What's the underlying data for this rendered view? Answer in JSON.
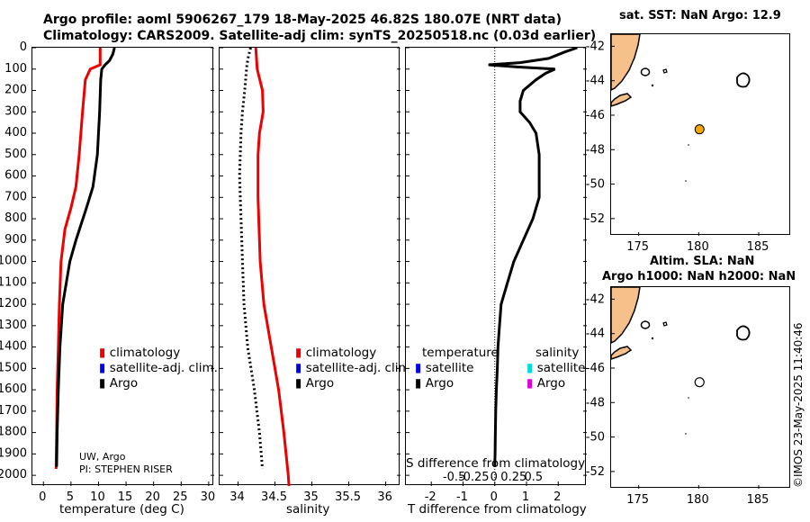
{
  "title": {
    "line1": "Argo profile: aoml 5906267_179 18-May-2025 46.82S 180.07E (NRT data)",
    "line2": "Climatology: CARS2009. Satellite-adj clim: synTS_20250518.nc (0.03d earlier)"
  },
  "colors": {
    "climatology": "#ee0000",
    "satellite": "#0000ee",
    "argo": "#000000",
    "sat_salinity": "#00dddd",
    "argo_salinity": "#dd00dd",
    "land": "#f5c08a",
    "float": "#f5a800"
  },
  "chart_data": [
    {
      "type": "line",
      "name": "temperature",
      "xlabel": "temperature (deg C)",
      "xlim": [
        -2,
        31
      ],
      "xticks": [
        "0",
        "5",
        "10",
        "15",
        "20",
        "25",
        "30"
      ],
      "ylim": [
        0,
        2050
      ],
      "yticks": [
        "0",
        "100",
        "200",
        "300",
        "400",
        "500",
        "600",
        "700",
        "800",
        "900",
        "1000",
        "1100",
        "1200",
        "1300",
        "1400",
        "1500",
        "1600",
        "1700",
        "1800",
        "1900",
        "2000"
      ],
      "legend": [
        "climatology",
        "satellite-adj. clim.",
        "Argo"
      ],
      "annotation": [
        "UW, Argo",
        "PI: STEPHEN RISER"
      ],
      "series": [
        {
          "name": "climatology",
          "depth": [
            0,
            80,
            100,
            150,
            300,
            500,
            650,
            750,
            850,
            1000,
            1200,
            1400,
            1600,
            1800,
            1970
          ],
          "values": [
            10.3,
            10.3,
            8.5,
            7.6,
            7.1,
            6.5,
            5.9,
            5.0,
            3.9,
            3.2,
            2.9,
            2.7,
            2.5,
            2.4,
            2.3
          ]
        },
        {
          "name": "Argo",
          "depth": [
            0,
            30,
            60,
            80,
            100,
            150,
            300,
            500,
            650,
            750,
            900,
            1000,
            1200,
            1400,
            1600,
            1800,
            1960
          ],
          "values": [
            12.9,
            12.6,
            12.0,
            11.2,
            10.6,
            10.4,
            10.2,
            9.8,
            9.0,
            7.8,
            5.9,
            4.8,
            3.5,
            3.0,
            2.7,
            2.5,
            2.4
          ]
        }
      ]
    },
    {
      "type": "line",
      "name": "salinity",
      "xlabel": "salinity",
      "xlim": [
        33.75,
        36.2
      ],
      "xticks": [
        "34",
        "34.5",
        "35",
        "35.5",
        "36"
      ],
      "ylim": [
        0,
        2050
      ],
      "legend": [
        "climatology",
        "satellite-adj. clim.",
        "Argo"
      ],
      "series": [
        {
          "name": "climatology",
          "depth": [
            0,
            50,
            100,
            200,
            300,
            400,
            500,
            700,
            1000,
            1200,
            1400,
            1600,
            1800,
            2000,
            2050
          ],
          "values": [
            34.24,
            34.25,
            34.26,
            34.33,
            34.34,
            34.29,
            34.27,
            34.27,
            34.3,
            34.35,
            34.45,
            34.55,
            34.62,
            34.68,
            34.69
          ]
        },
        {
          "name": "Argo",
          "depth": [
            0,
            40,
            80,
            120,
            200,
            300,
            400,
            600,
            800,
            1000,
            1200,
            1400,
            1600,
            1800,
            1970
          ],
          "values": [
            34.17,
            34.14,
            34.12,
            34.11,
            34.09,
            34.06,
            34.04,
            34.02,
            34.04,
            34.06,
            34.08,
            34.13,
            34.22,
            34.29,
            34.33
          ]
        }
      ]
    },
    {
      "type": "line",
      "name": "difference",
      "xlabel": "T difference from climatology",
      "xlabel2": "S difference from climatology",
      "xlim": [
        -2.8,
        2.9
      ],
      "xticks": [
        "-2",
        "-1",
        "0",
        "1",
        "2"
      ],
      "xticks2": [
        "-0.5",
        "-0.25",
        "0",
        "0.25",
        "0.5"
      ],
      "ylim": [
        0,
        2050
      ],
      "legend_temperature": [
        "temperature",
        "satellite",
        "Argo"
      ],
      "legend_salinity": [
        "salinity",
        "satellite",
        "Argo"
      ],
      "series": [
        {
          "name": "T difference",
          "depth": [
            0,
            20,
            50,
            70,
            80,
            90,
            100,
            120,
            150,
            200,
            250,
            300,
            350,
            400,
            500,
            600,
            700,
            800,
            900,
            1000,
            1100,
            1200,
            1300,
            1400,
            1500,
            1600,
            1700,
            1800,
            1900,
            1960
          ],
          "values": [
            2.6,
            2.2,
            1.7,
            0.8,
            -0.2,
            0.7,
            1.9,
            1.6,
            1.3,
            0.9,
            0.8,
            0.8,
            1.1,
            1.3,
            1.4,
            1.4,
            1.4,
            1.2,
            0.9,
            0.6,
            0.4,
            0.2,
            0.15,
            0.1,
            0.08,
            0.05,
            0.03,
            0.02,
            0.01,
            0.0
          ]
        }
      ]
    }
  ],
  "map_top": {
    "title": "sat. SST: NaN Argo: 12.9",
    "xticks": [
      "175",
      "180",
      "185"
    ],
    "yticks": [
      "-42",
      "-44",
      "-46",
      "-48",
      "-50",
      "-52"
    ],
    "xlim": [
      172.7,
      187.7
    ],
    "ylim": [
      -53,
      -41.3
    ],
    "float_lon": 180.07,
    "float_lat": -46.82
  },
  "map_bottom": {
    "title_line1": "Altim. SLA: NaN",
    "title_line2": "Argo h1000: NaN h2000: NaN",
    "xticks": [
      "175",
      "180",
      "185"
    ],
    "yticks": [
      "-42",
      "-44",
      "-46",
      "-48",
      "-50",
      "-52"
    ]
  },
  "credit": "©IMOS 23-May-2025 11:40:46"
}
